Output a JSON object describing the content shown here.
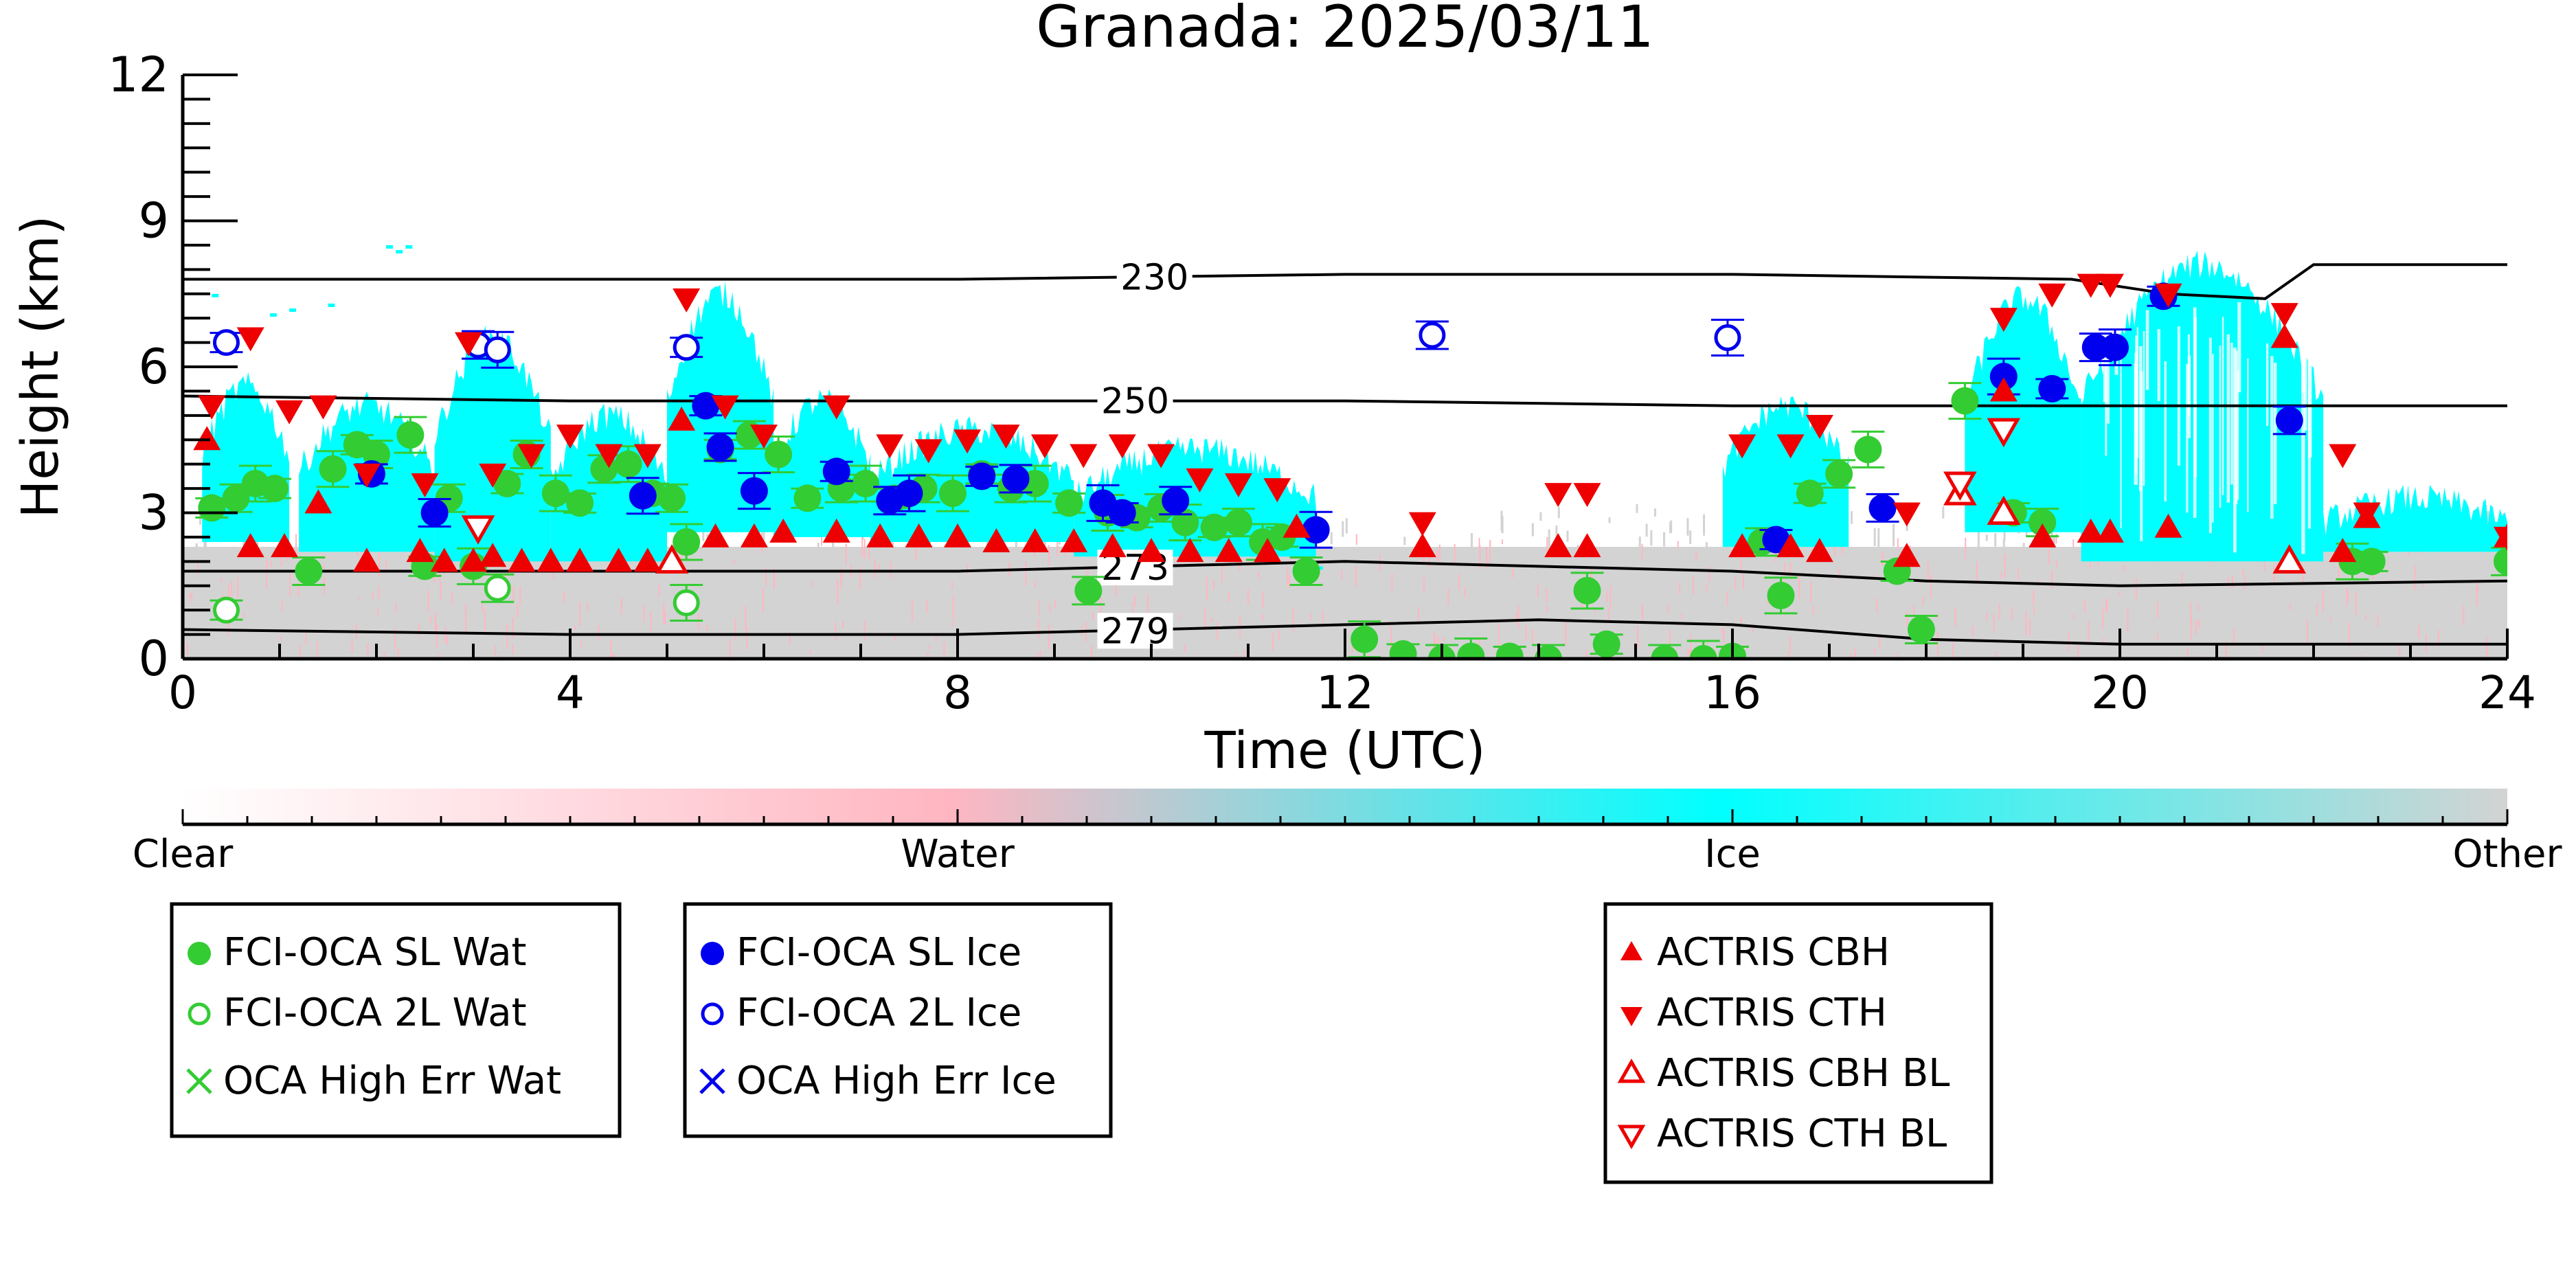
{
  "chart_data": {
    "type": "scatter",
    "title": "Granada: 2025/03/11",
    "xlabel": "Time (UTC)",
    "ylabel": "Height (km)",
    "xlim": [
      0,
      24
    ],
    "ylim": [
      0,
      12
    ],
    "xticks": [
      0,
      4,
      8,
      12,
      16,
      20,
      24
    ],
    "xtick_labels": [
      "0",
      "4",
      "8",
      "12",
      "16",
      "20",
      "24"
    ],
    "yticks": [
      0,
      3,
      6,
      9,
      12
    ],
    "ytick_labels": [
      "0",
      "3",
      "6",
      "9",
      "12"
    ],
    "grid": false,
    "background_classes": {
      "ice_regions": [
        {
          "t0": 0.2,
          "t1": 1.1,
          "bot": 2.4,
          "top": 5.6
        },
        {
          "t0": 1.2,
          "t1": 2.6,
          "bot": 2.2,
          "top": 5.2
        },
        {
          "t0": 2.6,
          "t1": 3.8,
          "bot": 2.0,
          "top": 6.6
        },
        {
          "t0": 3.8,
          "t1": 5.0,
          "bot": 2.0,
          "top": 5.0
        },
        {
          "t0": 5.0,
          "t1": 6.1,
          "bot": 2.6,
          "top": 7.5
        },
        {
          "t0": 6.1,
          "t1": 7.1,
          "bot": 2.5,
          "top": 5.3
        },
        {
          "t0": 7.1,
          "t1": 9.2,
          "bot": 2.4,
          "top": 4.7
        },
        {
          "t0": 9.2,
          "t1": 11.7,
          "bot": 2.1,
          "top": 4.3
        },
        {
          "t0": 15.9,
          "t1": 17.2,
          "bot": 2.3,
          "top": 5.2
        },
        {
          "t0": 18.4,
          "t1": 19.6,
          "bot": 2.6,
          "top": 7.4
        },
        {
          "t0": 19.6,
          "t1": 22.1,
          "bot": 2.0,
          "top": 8.1
        },
        {
          "t0": 22.1,
          "t1": 24.0,
          "bot": 2.2,
          "top": 3.3
        }
      ],
      "other_regions": [
        {
          "t0": 0.0,
          "t1": 24.0,
          "bot": 0.0,
          "top": 2.3
        }
      ]
    },
    "isotherms": [
      {
        "label": "230",
        "label_x": 9.7,
        "x": [
          0,
          4,
          8,
          12,
          16,
          19.5,
          20.5,
          21.5,
          22,
          24
        ],
        "y": [
          7.8,
          7.8,
          7.8,
          7.9,
          7.9,
          7.8,
          7.5,
          7.4,
          8.1,
          8.1
        ]
      },
      {
        "label": "250",
        "label_x": 9.5,
        "x": [
          0,
          4,
          8,
          12,
          16,
          18,
          20,
          24
        ],
        "y": [
          5.4,
          5.3,
          5.3,
          5.3,
          5.2,
          5.2,
          5.2,
          5.2
        ]
      },
      {
        "label": "273",
        "label_x": 9.5,
        "x": [
          0,
          4,
          8,
          12,
          14,
          16,
          18,
          20,
          24
        ],
        "y": [
          1.8,
          1.8,
          1.8,
          2.0,
          1.9,
          1.8,
          1.6,
          1.5,
          1.6
        ]
      },
      {
        "label": "279",
        "label_x": 9.5,
        "x": [
          0,
          4,
          8,
          12,
          14,
          16,
          18,
          20,
          24
        ],
        "y": [
          0.6,
          0.5,
          0.5,
          0.7,
          0.8,
          0.7,
          0.4,
          0.3,
          0.3
        ]
      }
    ],
    "series": [
      {
        "name": "FCI-OCA SL Wat",
        "color": "#33cc33",
        "marker": "filled-circle",
        "x": [
          0.3,
          0.55,
          0.75,
          0.95,
          1.3,
          1.55,
          1.8,
          2.0,
          2.35,
          2.5,
          2.75,
          3.0,
          3.35,
          3.55,
          3.85,
          4.1,
          4.35,
          4.6,
          4.85,
          5.05,
          5.2,
          5.55,
          5.85,
          6.15,
          6.45,
          6.8,
          7.05,
          7.35,
          7.65,
          7.95,
          8.25,
          8.55,
          8.8,
          9.15,
          9.35,
          9.55,
          9.85,
          10.1,
          10.35,
          10.65,
          10.9,
          11.15,
          11.35,
          11.6,
          12.2,
          12.6,
          13.0,
          13.3,
          13.7,
          14.1,
          14.5,
          14.7,
          15.3,
          15.7,
          16.0,
          16.3,
          16.5,
          16.8,
          17.1,
          17.4,
          17.7,
          17.95,
          18.4,
          18.9,
          19.2,
          22.4,
          22.6,
          24.0
        ],
        "y": [
          3.1,
          3.3,
          3.6,
          3.5,
          1.8,
          3.9,
          4.4,
          4.2,
          4.6,
          1.9,
          3.3,
          1.9,
          3.6,
          4.2,
          3.4,
          3.2,
          3.9,
          4.0,
          3.4,
          3.3,
          2.4,
          4.3,
          4.6,
          4.2,
          3.3,
          3.5,
          3.6,
          3.3,
          3.5,
          3.4,
          3.8,
          3.5,
          3.6,
          3.2,
          1.4,
          3.0,
          2.9,
          3.1,
          2.8,
          2.7,
          2.8,
          2.4,
          2.5,
          1.8,
          0.4,
          0.1,
          0.0,
          0.05,
          0.05,
          0.0,
          1.4,
          0.3,
          0.0,
          0.0,
          0.05,
          2.4,
          1.3,
          3.4,
          3.8,
          4.3,
          1.8,
          0.6,
          5.3,
          3.0,
          2.8,
          2.0,
          2.0,
          2.0
        ]
      },
      {
        "name": "FCI-OCA 2L Wat",
        "color": "#33cc33",
        "marker": "open-circle",
        "x": [
          0.45,
          3.25,
          5.2
        ],
        "y": [
          1.0,
          1.45,
          1.15
        ]
      },
      {
        "name": "OCA High Err Wat",
        "color": "#33cc33",
        "marker": "x",
        "x": [],
        "y": []
      },
      {
        "name": "FCI-OCA SL Ice",
        "color": "#0000ee",
        "marker": "filled-circle",
        "x": [
          1.95,
          2.6,
          4.75,
          5.4,
          5.55,
          5.9,
          6.75,
          7.3,
          7.5,
          8.25,
          8.6,
          9.5,
          9.7,
          10.25,
          11.7,
          16.45,
          17.55,
          18.8,
          19.3,
          19.75,
          19.95,
          20.45,
          21.75
        ],
        "y": [
          3.8,
          3.0,
          3.35,
          5.2,
          4.35,
          3.45,
          3.85,
          3.25,
          3.4,
          3.75,
          3.7,
          3.2,
          3.0,
          3.25,
          2.65,
          2.45,
          3.1,
          5.8,
          5.55,
          6.4,
          6.4,
          7.45,
          4.9
        ]
      },
      {
        "name": "FCI-OCA 2L Ice",
        "color": "#0000ee",
        "marker": "open-circle",
        "x": [
          0.45,
          3.05,
          3.25,
          5.2,
          12.9,
          15.95
        ],
        "y": [
          6.5,
          6.45,
          6.35,
          6.4,
          6.65,
          6.6
        ]
      },
      {
        "name": "OCA High Err Ice",
        "color": "#0000ee",
        "marker": "x",
        "x": [],
        "y": []
      },
      {
        "name": "ACTRIS CBH",
        "color": "#ee0000",
        "marker": "triangle-up",
        "x": [
          0.25,
          0.7,
          1.05,
          1.4,
          1.9,
          2.45,
          2.7,
          3.0,
          3.2,
          3.5,
          3.8,
          4.1,
          4.5,
          4.8,
          5.15,
          5.5,
          5.9,
          6.2,
          6.75,
          7.2,
          7.6,
          8.0,
          8.4,
          8.8,
          9.2,
          9.6,
          10.0,
          10.4,
          10.8,
          11.2,
          11.5,
          12.8,
          14.2,
          14.5,
          16.1,
          16.6,
          16.9,
          17.8,
          18.8,
          19.2,
          19.7,
          19.9,
          20.5,
          21.7,
          22.3,
          22.55,
          24.0
        ],
        "y": [
          4.5,
          2.3,
          2.3,
          3.2,
          2.0,
          2.2,
          2.0,
          2.0,
          2.1,
          2.0,
          2.0,
          2.0,
          2.0,
          2.0,
          4.9,
          2.5,
          2.5,
          2.6,
          2.6,
          2.5,
          2.5,
          2.5,
          2.4,
          2.4,
          2.4,
          2.3,
          2.2,
          2.2,
          2.2,
          2.2,
          2.7,
          2.3,
          2.3,
          2.3,
          2.3,
          2.3,
          2.2,
          2.1,
          5.5,
          2.5,
          2.6,
          2.6,
          2.7,
          6.6,
          2.2,
          2.9,
          2.5
        ]
      },
      {
        "name": "ACTRIS CTH",
        "color": "#ee0000",
        "marker": "triangle-down",
        "x": [
          0.3,
          0.7,
          1.1,
          1.45,
          1.9,
          2.5,
          2.95,
          3.2,
          3.6,
          4.0,
          4.4,
          4.8,
          5.2,
          5.6,
          6.0,
          6.75,
          7.3,
          7.7,
          8.1,
          8.5,
          8.9,
          9.3,
          9.7,
          10.1,
          10.5,
          10.9,
          11.3,
          12.8,
          14.2,
          14.5,
          16.1,
          16.6,
          16.9,
          17.8,
          18.8,
          19.3,
          19.7,
          19.9,
          20.5,
          21.7,
          22.3,
          22.55,
          24.0
        ],
        "y": [
          5.2,
          6.6,
          5.1,
          5.2,
          3.8,
          3.6,
          6.5,
          3.8,
          4.2,
          4.6,
          4.2,
          4.2,
          7.4,
          5.2,
          4.6,
          5.2,
          4.4,
          4.3,
          4.5,
          4.6,
          4.4,
          4.2,
          4.4,
          4.2,
          3.7,
          3.6,
          3.5,
          2.8,
          3.4,
          3.4,
          4.4,
          4.4,
          4.8,
          3.0,
          7.0,
          7.5,
          7.7,
          7.7,
          7.5,
          7.1,
          4.2,
          3.0,
          2.5
        ]
      },
      {
        "name": "ACTRIS CBH BL",
        "color": "#ee0000",
        "marker": "open-triangle-up",
        "x": [
          5.05,
          18.35,
          18.8,
          21.75
        ],
        "y": [
          2.0,
          3.4,
          3.0,
          2.0
        ]
      },
      {
        "name": "ACTRIS CTH BL",
        "color": "#ee0000",
        "marker": "open-triangle-down",
        "x": [
          3.05,
          18.35,
          18.8
        ],
        "y": [
          2.7,
          3.6,
          4.7
        ]
      }
    ],
    "colorbar": {
      "labels": [
        "Clear",
        "Water",
        "Ice",
        "Other"
      ],
      "colors": [
        "#ffffff",
        "#ffb6c1",
        "#00ffff",
        "#d3d3d3"
      ]
    },
    "legend_placement": "below-plot",
    "legend_groups": [
      [
        "FCI-OCA SL Wat",
        "FCI-OCA 2L Wat",
        "OCA High Err Wat"
      ],
      [
        "FCI-OCA SL Ice",
        "FCI-OCA 2L Ice",
        "OCA High Err Ice"
      ],
      [
        "ACTRIS CBH",
        "ACTRIS CTH",
        "ACTRIS CBH BL",
        "ACTRIS CTH BL"
      ]
    ]
  }
}
